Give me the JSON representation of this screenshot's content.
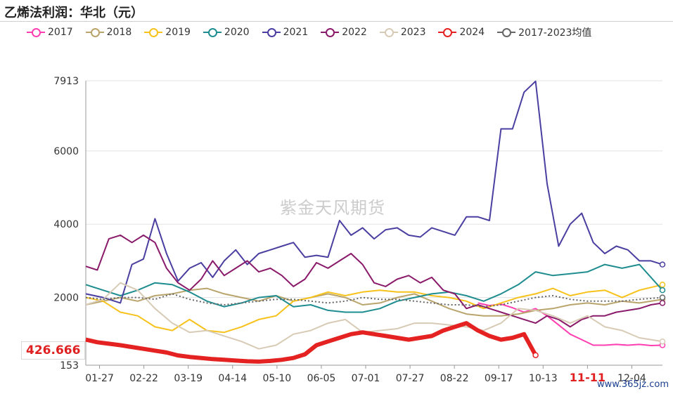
{
  "page": {
    "title": "乙烯法利润：华北（元）"
  },
  "watermark": "紫金天风期货",
  "current_value_label": "426.666",
  "website": "www.365jz.com",
  "colors": {
    "2017": "#ff3fb1",
    "2018": "#b9a46b",
    "2019": "#f7c21b",
    "2020": "#1f8d8f",
    "2021": "#4a3fa0",
    "2022": "#8a1a6a",
    "2023": "#d8cbb6",
    "2024": "#e52222",
    "avg": "#666666"
  },
  "chart_data": {
    "type": "line",
    "title": "乙烯法利润：华北（元）",
    "y_ticks": [
      "7913",
      "6000",
      "4000",
      "2000",
      "153"
    ],
    "ylim": [
      153,
      7913
    ],
    "x_ticks": [
      "01-27",
      "02-22",
      "03-19",
      "04-14",
      "05-10",
      "06-05",
      "07-01",
      "07-27",
      "08-22",
      "09-17",
      "10-13",
      "11-11",
      "12-04"
    ],
    "highlight_x": "11-11",
    "xlim": [
      0,
      100
    ],
    "grid": true,
    "legend_position": "top",
    "series": [
      {
        "name": "2017",
        "key": "2017",
        "x": [
          68,
          70,
          72,
          74,
          76,
          78,
          80,
          82,
          84,
          86,
          88,
          90,
          92,
          94,
          96,
          98,
          100
        ],
        "y": [
          1850,
          1780,
          1820,
          1720,
          1600,
          1700,
          1500,
          1250,
          1000,
          850,
          700,
          700,
          720,
          700,
          720,
          690,
          700
        ]
      },
      {
        "name": "2018",
        "key": "2018",
        "x": [
          0,
          3,
          6,
          9,
          12,
          15,
          18,
          21,
          24,
          27,
          30,
          33,
          36,
          39,
          42,
          45,
          48,
          51,
          54,
          57,
          60,
          63,
          66,
          69,
          72,
          75,
          78,
          81,
          84,
          87,
          90,
          93,
          96,
          100
        ],
        "y": [
          1800,
          1900,
          2000,
          1900,
          2050,
          2100,
          2200,
          2250,
          2100,
          2000,
          1900,
          2050,
          1900,
          2000,
          2100,
          2000,
          1800,
          1850,
          2000,
          2100,
          1900,
          1700,
          1550,
          1500,
          1500,
          1550,
          1650,
          1700,
          1800,
          1850,
          1800,
          1900,
          1850,
          1950
        ]
      },
      {
        "name": "2019",
        "key": "2019",
        "x": [
          0,
          3,
          6,
          9,
          12,
          15,
          18,
          21,
          24,
          27,
          30,
          33,
          36,
          39,
          42,
          45,
          48,
          51,
          54,
          57,
          60,
          63,
          66,
          69,
          72,
          75,
          78,
          81,
          84,
          87,
          90,
          93,
          96,
          100
        ],
        "y": [
          2000,
          1900,
          1600,
          1500,
          1200,
          1100,
          1400,
          1100,
          1050,
          1200,
          1400,
          1500,
          1900,
          2000,
          2150,
          2050,
          2150,
          2200,
          2150,
          2150,
          2050,
          2000,
          1900,
          1700,
          1850,
          2000,
          2100,
          2250,
          2050,
          2150,
          2200,
          2000,
          2200,
          2350
        ]
      },
      {
        "name": "2020",
        "key": "2020",
        "x": [
          0,
          3,
          6,
          9,
          12,
          15,
          18,
          21,
          24,
          27,
          30,
          33,
          36,
          39,
          42,
          45,
          48,
          51,
          54,
          57,
          60,
          63,
          66,
          69,
          72,
          75,
          78,
          81,
          84,
          87,
          90,
          93,
          96,
          100
        ],
        "y": [
          2350,
          2200,
          2050,
          2200,
          2400,
          2350,
          2150,
          1900,
          1750,
          1850,
          2000,
          2050,
          1750,
          1800,
          1650,
          1600,
          1600,
          1700,
          1900,
          2000,
          2100,
          2150,
          2050,
          1900,
          2100,
          2350,
          2700,
          2600,
          2650,
          2700,
          2900,
          2800,
          2900,
          2200
        ]
      },
      {
        "name": "2021",
        "key": "2021",
        "x": [
          0,
          3,
          6,
          8,
          10,
          12,
          14,
          16,
          18,
          20,
          22,
          24,
          26,
          28,
          30,
          32,
          34,
          36,
          38,
          40,
          42,
          44,
          46,
          48,
          50,
          52,
          54,
          56,
          58,
          60,
          62,
          64,
          66,
          68,
          70,
          72,
          74,
          76,
          78,
          80,
          82,
          84,
          86,
          88,
          90,
          92,
          94,
          96,
          98,
          100
        ],
        "y": [
          2100,
          2000,
          1850,
          2900,
          3050,
          4150,
          3200,
          2450,
          2800,
          2950,
          2550,
          3000,
          3300,
          2900,
          3200,
          3300,
          3400,
          3500,
          3100,
          3150,
          3100,
          4100,
          3700,
          3900,
          3600,
          3850,
          3900,
          3700,
          3650,
          3900,
          3800,
          3700,
          4200,
          4200,
          4100,
          6600,
          6600,
          7600,
          7900,
          5100,
          3400,
          4000,
          4300,
          3500,
          3200,
          3400,
          3300,
          3000,
          3000,
          2900
        ]
      },
      {
        "name": "2022",
        "key": "2022",
        "x": [
          0,
          2,
          4,
          6,
          8,
          10,
          12,
          14,
          16,
          18,
          20,
          22,
          24,
          26,
          28,
          30,
          32,
          34,
          36,
          38,
          40,
          42,
          44,
          46,
          48,
          50,
          52,
          54,
          56,
          58,
          60,
          62,
          64,
          66,
          68,
          70,
          72,
          74,
          76,
          78,
          80,
          82,
          84,
          86,
          88,
          90,
          92,
          94,
          96,
          98,
          100
        ],
        "y": [
          2850,
          2750,
          3600,
          3700,
          3500,
          3700,
          3500,
          2800,
          2400,
          2200,
          2500,
          3000,
          2600,
          2800,
          3000,
          2700,
          2800,
          2600,
          2300,
          2500,
          2950,
          2800,
          3000,
          3200,
          2900,
          2400,
          2300,
          2500,
          2600,
          2400,
          2550,
          2200,
          2100,
          1700,
          1800,
          1700,
          1600,
          1500,
          1400,
          1300,
          1500,
          1400,
          1200,
          1400,
          1500,
          1500,
          1600,
          1650,
          1700,
          1800,
          1850
        ]
      },
      {
        "name": "2023",
        "key": "2023",
        "x": [
          0,
          3,
          6,
          9,
          12,
          15,
          18,
          21,
          24,
          27,
          30,
          33,
          36,
          39,
          42,
          45,
          48,
          51,
          54,
          57,
          60,
          63,
          66,
          69,
          72,
          75,
          78,
          81,
          84,
          87,
          90,
          93,
          96,
          100
        ],
        "y": [
          1800,
          1950,
          2400,
          2200,
          1700,
          1300,
          1050,
          1100,
          950,
          800,
          600,
          700,
          1000,
          1100,
          1300,
          1400,
          1050,
          1100,
          1150,
          1300,
          1300,
          1250,
          1200,
          1100,
          1300,
          1700,
          1650,
          1500,
          1300,
          1500,
          1200,
          1100,
          900,
          800
        ]
      },
      {
        "name": "2024",
        "key": "2024",
        "x": [
          0,
          2,
          4,
          6,
          8,
          10,
          12,
          14,
          16,
          18,
          20,
          22,
          24,
          26,
          28,
          30,
          32,
          34,
          36,
          38,
          40,
          42,
          44,
          46,
          48,
          50,
          52,
          54,
          56,
          58,
          60,
          62,
          64,
          66,
          68,
          70,
          72,
          74,
          76,
          78
        ],
        "y": [
          850,
          780,
          740,
          700,
          650,
          600,
          550,
          500,
          420,
          380,
          350,
          320,
          300,
          280,
          260,
          250,
          270,
          300,
          350,
          450,
          700,
          800,
          900,
          1000,
          1050,
          1000,
          950,
          900,
          850,
          900,
          950,
          1100,
          1200,
          1300,
          1100,
          950,
          850,
          900,
          1000,
          427
        ]
      },
      {
        "name": "2017-2023均值",
        "key": "avg",
        "x": [
          0,
          3,
          6,
          9,
          12,
          15,
          18,
          21,
          24,
          27,
          30,
          33,
          36,
          39,
          42,
          45,
          48,
          51,
          54,
          57,
          60,
          63,
          66,
          69,
          72,
          75,
          78,
          81,
          84,
          87,
          90,
          93,
          96,
          100
        ],
        "y": [
          2000,
          1950,
          2000,
          2000,
          1950,
          2100,
          1950,
          1850,
          1800,
          1850,
          1900,
          1950,
          1950,
          1900,
          1850,
          1900,
          2000,
          1950,
          1950,
          1900,
          1850,
          1800,
          1800,
          1750,
          1800,
          1900,
          2000,
          2050,
          1950,
          1900,
          1900,
          1900,
          1950,
          2000
        ]
      }
    ]
  }
}
